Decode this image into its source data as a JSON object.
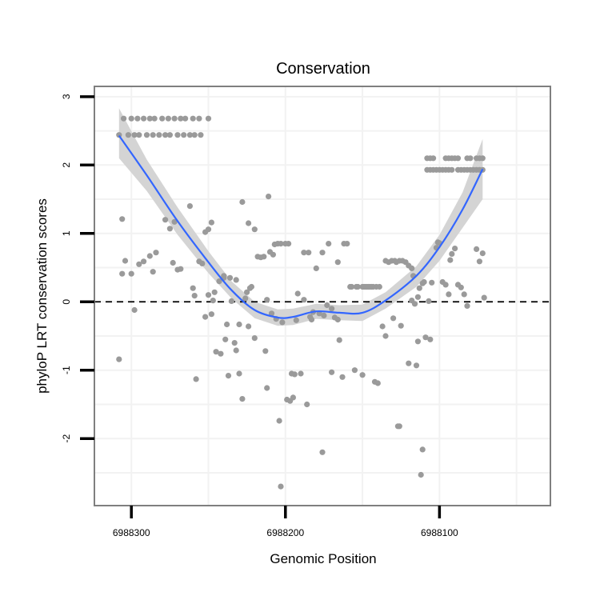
{
  "chart_data": {
    "type": "scatter",
    "title": "Conservation",
    "xlabel": "Genomic Position",
    "ylabel": "phyloP LRT conservation scores",
    "x_reversed": true,
    "xlim": [
      6988028,
      6988324
    ],
    "ylim": [
      -2.98,
      3.15
    ],
    "x_ticks": [
      6988300,
      6988200,
      6988100
    ],
    "x_tick_labels": [
      "6988300",
      "6988200",
      "6988100"
    ],
    "y_ticks": [
      -2,
      -1,
      0,
      1,
      2,
      3
    ],
    "y_tick_labels": [
      "-2",
      "-1",
      "0",
      "1",
      "2",
      "3"
    ],
    "reference_line": {
      "y": 0,
      "style": "dashed"
    },
    "grid": true,
    "colors": {
      "points": "#9a9a9a",
      "smooth_line": "#3366ff",
      "ribbon": "#d2d2d2",
      "panel_border": "#7f7f7f",
      "grid": "#f2f2f2"
    },
    "points": [
      [
        6988308,
        2.44
      ],
      [
        6988305,
        2.68
      ],
      [
        6988300,
        2.68
      ],
      [
        6988296,
        2.68
      ],
      [
        6988292,
        2.68
      ],
      [
        6988288,
        2.68
      ],
      [
        6988285,
        2.68
      ],
      [
        6988280,
        2.68
      ],
      [
        6988276,
        2.68
      ],
      [
        6988272,
        2.68
      ],
      [
        6988268,
        2.68
      ],
      [
        6988265,
        2.68
      ],
      [
        6988260,
        2.68
      ],
      [
        6988256,
        2.68
      ],
      [
        6988250,
        2.68
      ],
      [
        6988302,
        2.44
      ],
      [
        6988298,
        2.44
      ],
      [
        6988295,
        2.44
      ],
      [
        6988290,
        2.44
      ],
      [
        6988286,
        2.44
      ],
      [
        6988282,
        2.44
      ],
      [
        6988278,
        2.44
      ],
      [
        6988275,
        2.44
      ],
      [
        6988270,
        2.44
      ],
      [
        6988266,
        2.44
      ],
      [
        6988262,
        2.44
      ],
      [
        6988259,
        2.44
      ],
      [
        6988255,
        2.44
      ],
      [
        6988308,
        -0.84
      ],
      [
        6988306,
        1.21
      ],
      [
        6988306,
        0.41
      ],
      [
        6988304,
        0.6
      ],
      [
        6988300,
        0.41
      ],
      [
        6988298,
        -0.12
      ],
      [
        6988295,
        0.55
      ],
      [
        6988292,
        0.59
      ],
      [
        6988288,
        0.67
      ],
      [
        6988286,
        0.44
      ],
      [
        6988284,
        0.72
      ],
      [
        6988278,
        1.2
      ],
      [
        6988275,
        1.07
      ],
      [
        6988273,
        0.57
      ],
      [
        6988272,
        1.17
      ],
      [
        6988270,
        0.47
      ],
      [
        6988268,
        0.48
      ],
      [
        6988262,
        1.4
      ],
      [
        6988260,
        0.2
      ],
      [
        6988259,
        0.09
      ],
      [
        6988258,
        -1.13
      ],
      [
        6988256,
        0.59
      ],
      [
        6988254,
        0.56
      ],
      [
        6988252,
        -0.22
      ],
      [
        6988252,
        1.02
      ],
      [
        6988250,
        0.1
      ],
      [
        6988250,
        1.06
      ],
      [
        6988248,
        1.16
      ],
      [
        6988248,
        -0.18
      ],
      [
        6988247,
        0.02
      ],
      [
        6988246,
        0.14
      ],
      [
        6988245,
        -0.73
      ],
      [
        6988243,
        0.3
      ],
      [
        6988242,
        -0.76
      ],
      [
        6988240,
        0.38
      ],
      [
        6988240,
        0.35
      ],
      [
        6988239,
        -0.55
      ],
      [
        6988238,
        -0.33
      ],
      [
        6988237,
        -1.08
      ],
      [
        6988236,
        0.35
      ],
      [
        6988235,
        0.01
      ],
      [
        6988233,
        -0.6
      ],
      [
        6988232,
        -0.71
      ],
      [
        6988232,
        0.32
      ],
      [
        6988230,
        -0.33
      ],
      [
        6988230,
        -1.05
      ],
      [
        6988228,
        -1.42
      ],
      [
        6988228,
        1.46
      ],
      [
        6988226,
        0.05
      ],
      [
        6988225,
        0.14
      ],
      [
        6988224,
        -0.36
      ],
      [
        6988224,
        1.15
      ],
      [
        6988223,
        0.2
      ],
      [
        6988222,
        0.22
      ],
      [
        6988220,
        -0.53
      ],
      [
        6988220,
        1.06
      ],
      [
        6988218,
        0.66
      ],
      [
        6988216,
        0.65
      ],
      [
        6988214,
        0.66
      ],
      [
        6988213,
        -0.72
      ],
      [
        6988212,
        -1.26
      ],
      [
        6988212,
        0.03
      ],
      [
        6988211,
        1.54
      ],
      [
        6988210,
        0.73
      ],
      [
        6988209,
        -0.17
      ],
      [
        6988208,
        0.69
      ],
      [
        6988207,
        0.84
      ],
      [
        6988206,
        -0.25
      ],
      [
        6988205,
        0.85
      ],
      [
        6988204,
        -1.74
      ],
      [
        6988203,
        -2.7
      ],
      [
        6988203,
        0.85
      ],
      [
        6988202,
        -0.3
      ],
      [
        6988200,
        0.85
      ],
      [
        6988198,
        0.85
      ],
      [
        6988199,
        -1.43
      ],
      [
        6988197,
        -1.45
      ],
      [
        6988196,
        -1.05
      ],
      [
        6988195,
        -1.4
      ],
      [
        6988194,
        -1.06
      ],
      [
        6988193,
        -0.27
      ],
      [
        6988192,
        0.12
      ],
      [
        6988190,
        -1.05
      ],
      [
        6988188,
        0.03
      ],
      [
        6988188,
        0.72
      ],
      [
        6988186,
        -1.5
      ],
      [
        6988185,
        0.72
      ],
      [
        6988184,
        -0.22
      ],
      [
        6988183,
        -0.26
      ],
      [
        6988182,
        -0.15
      ],
      [
        6988180,
        0.49
      ],
      [
        6988178,
        -0.17
      ],
      [
        6988176,
        -2.2
      ],
      [
        6988176,
        0.72
      ],
      [
        6988175,
        -0.2
      ],
      [
        6988173,
        -0.05
      ],
      [
        6988172,
        0.85
      ],
      [
        6988170,
        -1.03
      ],
      [
        6988170,
        -0.1
      ],
      [
        6988168,
        -0.23
      ],
      [
        6988166,
        0.58
      ],
      [
        6988166,
        -0.26
      ],
      [
        6988165,
        -0.56
      ],
      [
        6988163,
        -1.1
      ],
      [
        6988162,
        0.85
      ],
      [
        6988160,
        0.85
      ],
      [
        6988158,
        0.22
      ],
      [
        6988157,
        0.22
      ],
      [
        6988155,
        -1.0
      ],
      [
        6988154,
        0.22
      ],
      [
        6988153,
        0.22
      ],
      [
        6988150,
        -1.07
      ],
      [
        6988150,
        0.22
      ],
      [
        6988149,
        0.22
      ],
      [
        6988148,
        0.22
      ],
      [
        6988147,
        0.22
      ],
      [
        6988146,
        0.22
      ],
      [
        6988145,
        0.22
      ],
      [
        6988144,
        0.22
      ],
      [
        6988143,
        0.22
      ],
      [
        6988142,
        -1.17
      ],
      [
        6988141,
        0.22
      ],
      [
        6988140,
        -1.19
      ],
      [
        6988139,
        0.22
      ],
      [
        6988137,
        -0.36
      ],
      [
        6988135,
        -0.5
      ],
      [
        6988135,
        0.6
      ],
      [
        6988133,
        0.58
      ],
      [
        6988131,
        0.6
      ],
      [
        6988130,
        -0.24
      ],
      [
        6988129,
        0.6
      ],
      [
        6988128,
        0.58
      ],
      [
        6988127,
        -1.82
      ],
      [
        6988126,
        -1.82
      ],
      [
        6988126,
        0.6
      ],
      [
        6988125,
        -0.35
      ],
      [
        6988124,
        0.6
      ],
      [
        6988122,
        0.58
      ],
      [
        6988120,
        -0.9
      ],
      [
        6988120,
        0.53
      ],
      [
        6988118,
        0.49
      ],
      [
        6988118,
        0.02
      ],
      [
        6988117,
        0.38
      ],
      [
        6988116,
        -0.03
      ],
      [
        6988115,
        -0.93
      ],
      [
        6988114,
        -0.58
      ],
      [
        6988114,
        0.07
      ],
      [
        6988113,
        0.2
      ],
      [
        6988112,
        -2.53
      ],
      [
        6988111,
        -2.16
      ],
      [
        6988111,
        0.27
      ],
      [
        6988110,
        0.29
      ],
      [
        6988109,
        -0.52
      ],
      [
        6988107,
        0.01
      ],
      [
        6988106,
        -0.55
      ],
      [
        6988105,
        0.28
      ],
      [
        6988102,
        0.79
      ],
      [
        6988101,
        0.87
      ],
      [
        6988100,
        0.86
      ],
      [
        6988098,
        0.29
      ],
      [
        6988096,
        0.25
      ],
      [
        6988094,
        0.11
      ],
      [
        6988093,
        0.61
      ],
      [
        6988092,
        0.7
      ],
      [
        6988090,
        0.78
      ],
      [
        6988088,
        0.25
      ],
      [
        6988086,
        0.21
      ],
      [
        6988084,
        0.11
      ],
      [
        6988082,
        -0.06
      ],
      [
        6988076,
        0.77
      ],
      [
        6988074,
        0.59
      ],
      [
        6988072,
        0.71
      ],
      [
        6988071,
        0.06
      ],
      [
        6988108,
        2.1
      ],
      [
        6988106,
        2.1
      ],
      [
        6988104,
        2.1
      ],
      [
        6988096,
        2.1
      ],
      [
        6988094,
        2.1
      ],
      [
        6988092,
        2.1
      ],
      [
        6988090,
        2.1
      ],
      [
        6988088,
        2.1
      ],
      [
        6988082,
        2.1
      ],
      [
        6988080,
        2.1
      ],
      [
        6988076,
        2.1
      ],
      [
        6988074,
        2.1
      ],
      [
        6988072,
        2.1
      ],
      [
        6988108,
        1.93
      ],
      [
        6988106,
        1.93
      ],
      [
        6988104,
        1.93
      ],
      [
        6988102,
        1.93
      ],
      [
        6988100,
        1.93
      ],
      [
        6988098,
        1.93
      ],
      [
        6988096,
        1.93
      ],
      [
        6988094,
        1.93
      ],
      [
        6988092,
        1.93
      ],
      [
        6988088,
        1.93
      ],
      [
        6988086,
        1.93
      ],
      [
        6988084,
        1.93
      ],
      [
        6988082,
        1.93
      ],
      [
        6988080,
        1.93
      ],
      [
        6988078,
        1.93
      ],
      [
        6988076,
        1.93
      ],
      [
        6988074,
        1.93
      ],
      [
        6988072,
        1.93
      ]
    ],
    "smooth_curve": {
      "x": [
        6988308,
        6988290,
        6988270,
        6988250,
        6988235,
        6988220,
        6988205,
        6988195,
        6988180,
        6988165,
        6988150,
        6988135,
        6988115,
        6988100,
        6988085,
        6988072
      ],
      "y": [
        2.43,
        1.85,
        1.18,
        0.58,
        0.17,
        -0.12,
        -0.23,
        -0.22,
        -0.14,
        -0.16,
        -0.16,
        0.02,
        0.38,
        0.8,
        1.35,
        1.94
      ],
      "lower": [
        2.1,
        1.62,
        0.98,
        0.42,
        0.05,
        -0.24,
        -0.35,
        -0.34,
        -0.25,
        -0.27,
        -0.28,
        -0.1,
        0.22,
        0.6,
        1.08,
        1.5
      ],
      "upper": [
        2.83,
        2.08,
        1.38,
        0.74,
        0.3,
        0.0,
        -0.11,
        -0.1,
        -0.03,
        -0.05,
        -0.04,
        0.14,
        0.52,
        0.98,
        1.6,
        2.38
      ]
    }
  }
}
